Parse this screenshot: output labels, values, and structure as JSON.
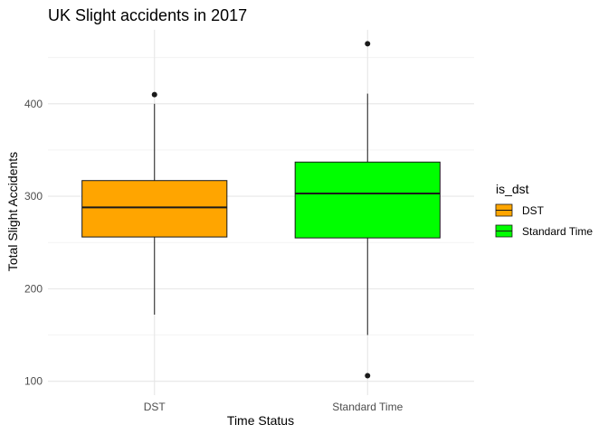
{
  "chart_data": {
    "type": "boxplot",
    "title": "UK Slight accidents in 2017",
    "xlabel": "Time Status",
    "ylabel": "Total Slight Accidents",
    "categories": [
      "DST",
      "Standard Time"
    ],
    "yticks": [
      100,
      200,
      300,
      400
    ],
    "ylim": [
      85,
      480
    ],
    "grid": true,
    "legend": {
      "title": "is_dst",
      "position": "right",
      "entries": [
        "DST",
        "Standard Time"
      ]
    },
    "boxes": [
      {
        "name": "DST",
        "color": "#FFA500",
        "whisker_low": 172,
        "q1": 256,
        "median": 288,
        "q3": 317,
        "whisker_high": 400,
        "outliers": [
          410
        ]
      },
      {
        "name": "Standard Time",
        "color": "#00FF00",
        "whisker_low": 150,
        "q1": 255,
        "median": 303,
        "q3": 337,
        "whisker_high": 411,
        "outliers": [
          465,
          106
        ]
      }
    ]
  }
}
